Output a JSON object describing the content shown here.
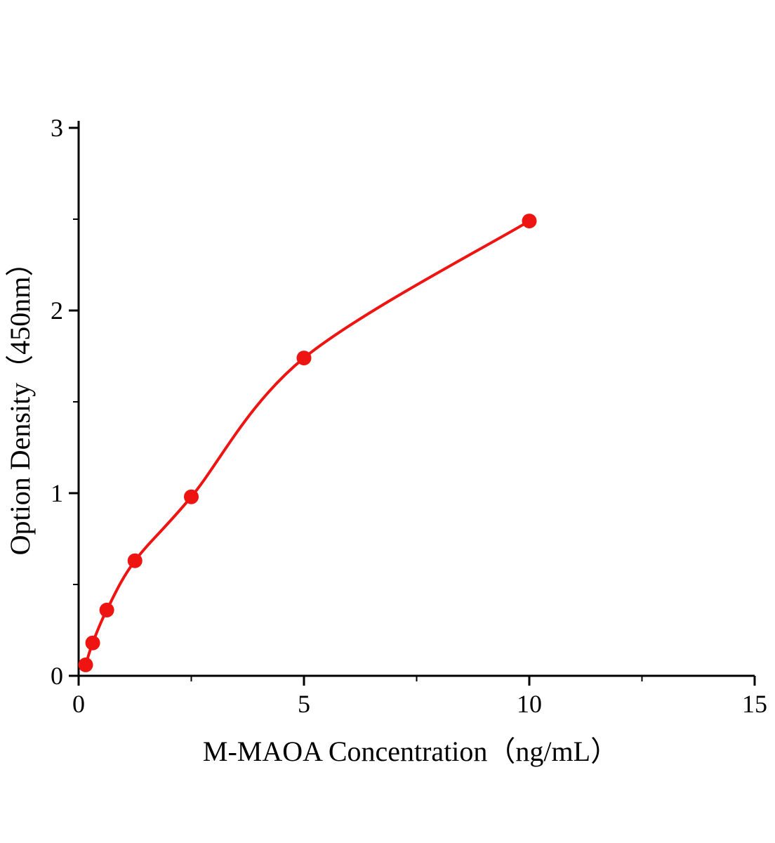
{
  "chart_data": {
    "type": "scatter",
    "title": "",
    "xlabel": "M-MAOA Concentration（ng/mL）",
    "ylabel": "Option Density（450nm）",
    "x": [
      0.156,
      0.3125,
      0.625,
      1.25,
      2.5,
      5,
      10
    ],
    "y": [
      0.06,
      0.18,
      0.36,
      0.63,
      0.98,
      1.74,
      2.49
    ],
    "xlim": [
      0,
      15
    ],
    "ylim": [
      0,
      3
    ],
    "xticks": [
      0,
      5,
      10,
      15
    ],
    "yticks": [
      0,
      1,
      2,
      3
    ],
    "x_minor_ticks": [
      2.5,
      7.5,
      12.5
    ],
    "y_minor_ticks": [
      0.5,
      1.5,
      2.5
    ],
    "grid": false,
    "legend": null,
    "point_color": "#ee1411",
    "curve_color": "#ee1411",
    "axis_color": "#000000",
    "curve_style": "smooth saturation curve through points"
  }
}
